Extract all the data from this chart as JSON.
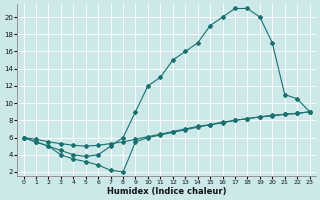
{
  "xlabel": "Humidex (Indice chaleur)",
  "bg_color": "#cce8e8",
  "grid_color": "#ffffff",
  "line_color": "#1a7070",
  "xlim": [
    -0.5,
    23.5
  ],
  "ylim": [
    1.5,
    21.5
  ],
  "xticks": [
    0,
    1,
    2,
    3,
    4,
    5,
    6,
    7,
    8,
    9,
    10,
    11,
    12,
    13,
    14,
    15,
    16,
    17,
    18,
    19,
    20,
    21,
    22,
    23
  ],
  "yticks": [
    2,
    4,
    6,
    8,
    10,
    12,
    14,
    16,
    18,
    20
  ],
  "line_top_x": [
    0,
    1,
    2,
    3,
    4,
    5,
    6,
    7,
    8,
    9,
    10,
    11,
    12,
    13,
    14,
    15,
    16,
    17,
    18,
    19,
    20,
    21,
    22,
    23
  ],
  "line_top_y": [
    6,
    5.5,
    5,
    4.5,
    4,
    3.8,
    4,
    5,
    6,
    9,
    12,
    13,
    15,
    16,
    17,
    19,
    20,
    21,
    21,
    20,
    17,
    11,
    10.5,
    9
  ],
  "line_mid_x": [
    0,
    1,
    2,
    3,
    4,
    5,
    6,
    7,
    8,
    9,
    10,
    11,
    12,
    13,
    14,
    15,
    16,
    17,
    18,
    19,
    20,
    21,
    22,
    23
  ],
  "line_mid_y": [
    6,
    5.8,
    5.5,
    5.3,
    5.1,
    5.0,
    5.1,
    5.3,
    5.5,
    5.8,
    6.1,
    6.4,
    6.7,
    7.0,
    7.3,
    7.5,
    7.8,
    8.0,
    8.2,
    8.4,
    8.5,
    8.7,
    8.8,
    9
  ],
  "line_bot_x": [
    0,
    1,
    2,
    3,
    4,
    5,
    6,
    7,
    8,
    9,
    10,
    11,
    12,
    13,
    14,
    15,
    16,
    17,
    18,
    19,
    20,
    21,
    22,
    23
  ],
  "line_bot_y": [
    6,
    5.5,
    5,
    4,
    3.5,
    3.2,
    2.8,
    2.2,
    2.0,
    5.5,
    6.0,
    6.3,
    6.6,
    6.9,
    7.2,
    7.5,
    7.7,
    8.0,
    8.2,
    8.4,
    8.6,
    8.7,
    8.8,
    9
  ]
}
